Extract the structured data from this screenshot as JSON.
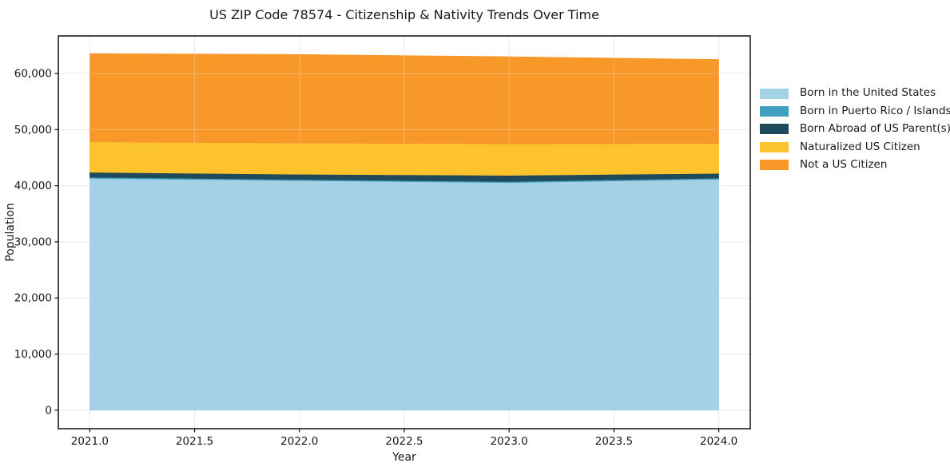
{
  "chart_data": {
    "type": "area",
    "stacked": true,
    "title": "US ZIP Code 78574 - Citizenship & Nativity Trends Over Time",
    "xlabel": "Year",
    "ylabel": "Population",
    "x": [
      2021,
      2022,
      2023,
      2024
    ],
    "series": [
      {
        "name": "Born in the United States",
        "color": "#a4d1e6",
        "values": [
          41300,
          40900,
          40550,
          41150
        ]
      },
      {
        "name": "Born in Puerto Rico / Islands",
        "color": "#42a1c1",
        "values": [
          200,
          200,
          200,
          200
        ]
      },
      {
        "name": "Born Abroad of US Parent(s)",
        "color": "#1f4a5c",
        "values": [
          900,
          950,
          1100,
          850
        ]
      },
      {
        "name": "Naturalized US Citizen",
        "color": "#fcc32d",
        "values": [
          5400,
          5550,
          5600,
          5300
        ]
      },
      {
        "name": "Not a US Citizen",
        "color": "#f89829",
        "values": [
          15750,
          15800,
          15550,
          15000
        ]
      }
    ],
    "xlim": [
      2020.85,
      2024.15
    ],
    "ylim": [
      -3300,
      66700
    ],
    "x_ticks": {
      "values": [
        2021,
        2021.5,
        2022,
        2022.5,
        2023,
        2023.5,
        2024
      ],
      "labels": [
        "2021.0",
        "2021.5",
        "2022.0",
        "2022.5",
        "2023.0",
        "2023.5",
        "2024.0"
      ]
    },
    "y_ticks": {
      "values": [
        0,
        10000,
        20000,
        30000,
        40000,
        50000,
        60000
      ],
      "labels": [
        "0",
        "10,000",
        "20,000",
        "30,000",
        "40,000",
        "50,000",
        "60,000"
      ]
    },
    "grid": true,
    "legend_position": "right",
    "colors": {
      "spine": "#000000",
      "grid_under": "#e9e9e9",
      "grid_over_fills": "rgba(255,255,255,0.28)",
      "text": "#191919",
      "background": "#ffffff"
    }
  }
}
